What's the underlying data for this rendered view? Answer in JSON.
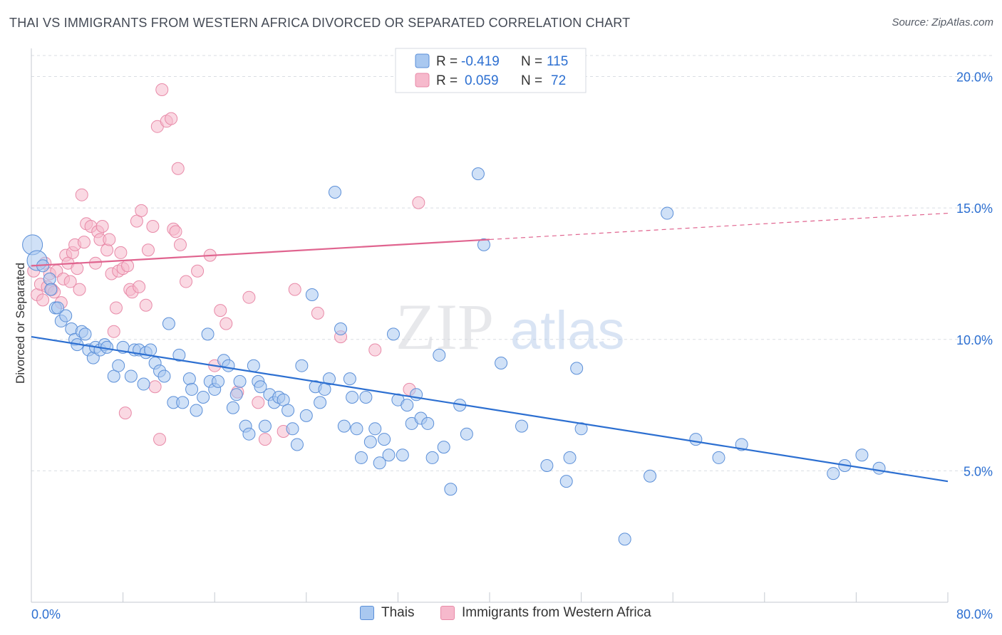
{
  "header": {
    "title": "THAI VS IMMIGRANTS FROM WESTERN AFRICA DIVORCED OR SEPARATED CORRELATION CHART",
    "source": "Source: ZipAtlas.com"
  },
  "watermark": {
    "zip": "ZIP",
    "atlas": "atlas"
  },
  "colors": {
    "thai_fill": "#a9c8f0",
    "thai_stroke": "#5b8fd8",
    "thai_line": "#2c6fd1",
    "waf_fill": "#f6b9cc",
    "waf_stroke": "#e88aa8",
    "waf_line": "#e0648f",
    "value_text": "#2c6fd1",
    "grid": "#d9dde3"
  },
  "legend_top": [
    {
      "r_label": "R =",
      "r_value": "-0.419",
      "n_label": "N =",
      "n_value": "115"
    },
    {
      "r_label": "R =",
      "r_value": "0.059",
      "n_label": "N =",
      "n_value": "72"
    }
  ],
  "chart_data": {
    "type": "scatter",
    "title": "THAI VS IMMIGRANTS FROM WESTERN AFRICA DIVORCED OR SEPARATED CORRELATION CHART",
    "xlabel": "",
    "ylabel": "Divorced or Separated",
    "xlim": [
      0,
      80
    ],
    "ylim": [
      0,
      20.8
    ],
    "x_tick_labels": [
      "0.0%",
      "80.0%"
    ],
    "y_ticks": [
      5,
      10,
      15,
      20
    ],
    "y_tick_labels": [
      "5.0%",
      "10.0%",
      "15.0%",
      "20.0%"
    ],
    "grid": "horizontal dashed",
    "legend": "bottom-center",
    "series": [
      {
        "name": "Thais",
        "r": -0.419,
        "n": 115,
        "trend": {
          "x": [
            0,
            80
          ],
          "y": [
            10.1,
            4.6
          ]
        },
        "points": [
          [
            0.1,
            13.6
          ],
          [
            0.5,
            13.0
          ],
          [
            1.0,
            12.8
          ],
          [
            1.6,
            12.3
          ],
          [
            1.7,
            11.9
          ],
          [
            2.1,
            11.2
          ],
          [
            2.3,
            11.2
          ],
          [
            2.6,
            10.7
          ],
          [
            3.0,
            10.9
          ],
          [
            3.5,
            10.4
          ],
          [
            3.8,
            10.0
          ],
          [
            4.0,
            9.8
          ],
          [
            4.4,
            10.3
          ],
          [
            4.7,
            10.2
          ],
          [
            5.0,
            9.6
          ],
          [
            5.4,
            9.3
          ],
          [
            5.6,
            9.7
          ],
          [
            6.0,
            9.6
          ],
          [
            6.4,
            9.8
          ],
          [
            6.6,
            9.7
          ],
          [
            7.2,
            8.6
          ],
          [
            7.6,
            9.0
          ],
          [
            8.0,
            9.7
          ],
          [
            8.7,
            8.6
          ],
          [
            9.0,
            9.6
          ],
          [
            9.4,
            9.6
          ],
          [
            9.8,
            8.3
          ],
          [
            10.0,
            9.5
          ],
          [
            10.4,
            9.6
          ],
          [
            10.8,
            9.1
          ],
          [
            11.2,
            8.8
          ],
          [
            11.6,
            8.6
          ],
          [
            12.0,
            10.6
          ],
          [
            12.4,
            7.6
          ],
          [
            12.9,
            9.4
          ],
          [
            13.2,
            7.6
          ],
          [
            13.8,
            8.5
          ],
          [
            14.0,
            8.1
          ],
          [
            14.4,
            7.3
          ],
          [
            15.0,
            7.8
          ],
          [
            15.4,
            10.2
          ],
          [
            15.6,
            8.4
          ],
          [
            16.0,
            8.1
          ],
          [
            16.3,
            8.4
          ],
          [
            16.8,
            9.2
          ],
          [
            17.2,
            9.0
          ],
          [
            17.6,
            7.4
          ],
          [
            17.9,
            7.9
          ],
          [
            18.2,
            8.4
          ],
          [
            18.7,
            6.7
          ],
          [
            19.0,
            6.4
          ],
          [
            19.4,
            9.0
          ],
          [
            19.8,
            8.4
          ],
          [
            20.0,
            8.2
          ],
          [
            20.4,
            6.7
          ],
          [
            20.8,
            7.9
          ],
          [
            21.2,
            7.6
          ],
          [
            21.6,
            7.8
          ],
          [
            22.0,
            7.7
          ],
          [
            22.4,
            7.3
          ],
          [
            22.8,
            6.6
          ],
          [
            23.2,
            6.0
          ],
          [
            23.6,
            9.0
          ],
          [
            24.0,
            7.1
          ],
          [
            24.5,
            11.7
          ],
          [
            24.8,
            8.2
          ],
          [
            25.2,
            7.6
          ],
          [
            25.6,
            8.1
          ],
          [
            26.0,
            8.5
          ],
          [
            26.5,
            15.6
          ],
          [
            27.0,
            10.4
          ],
          [
            27.3,
            6.7
          ],
          [
            27.8,
            8.5
          ],
          [
            28.0,
            7.8
          ],
          [
            28.4,
            6.6
          ],
          [
            28.8,
            5.5
          ],
          [
            29.2,
            7.8
          ],
          [
            29.6,
            6.1
          ],
          [
            30.0,
            6.6
          ],
          [
            30.4,
            5.3
          ],
          [
            30.8,
            6.2
          ],
          [
            31.2,
            5.6
          ],
          [
            31.6,
            10.2
          ],
          [
            32.0,
            7.7
          ],
          [
            32.4,
            5.6
          ],
          [
            32.8,
            7.5
          ],
          [
            33.2,
            6.8
          ],
          [
            33.6,
            7.9
          ],
          [
            34.0,
            7.0
          ],
          [
            34.6,
            6.8
          ],
          [
            35.0,
            5.5
          ],
          [
            35.6,
            9.4
          ],
          [
            36.0,
            5.9
          ],
          [
            36.6,
            4.3
          ],
          [
            37.4,
            7.5
          ],
          [
            38.0,
            6.4
          ],
          [
            39.0,
            16.3
          ],
          [
            39.5,
            13.6
          ],
          [
            41.0,
            9.1
          ],
          [
            42.8,
            6.7
          ],
          [
            45.0,
            5.2
          ],
          [
            46.7,
            4.6
          ],
          [
            47.0,
            5.5
          ],
          [
            47.6,
            8.9
          ],
          [
            48.0,
            6.6
          ],
          [
            51.8,
            2.4
          ],
          [
            54.0,
            4.8
          ],
          [
            55.5,
            14.8
          ],
          [
            58.0,
            6.2
          ],
          [
            60.0,
            5.5
          ],
          [
            62.0,
            6.0
          ],
          [
            70.0,
            4.9
          ],
          [
            71.0,
            5.2
          ],
          [
            72.5,
            5.6
          ],
          [
            74.0,
            5.1
          ]
        ]
      },
      {
        "name": "Immigrants from Western Africa",
        "r": 0.059,
        "n": 72,
        "trend": {
          "x": [
            0,
            80
          ],
          "y": [
            12.8,
            14.8
          ],
          "solid_until_x": 40
        },
        "points": [
          [
            0.2,
            12.6
          ],
          [
            0.5,
            11.7
          ],
          [
            0.8,
            12.1
          ],
          [
            1.0,
            11.5
          ],
          [
            1.2,
            12.9
          ],
          [
            1.4,
            12.0
          ],
          [
            1.6,
            12.5
          ],
          [
            1.8,
            11.9
          ],
          [
            2.0,
            11.8
          ],
          [
            2.2,
            12.6
          ],
          [
            2.6,
            11.4
          ],
          [
            2.8,
            12.3
          ],
          [
            3.0,
            13.2
          ],
          [
            3.2,
            12.9
          ],
          [
            3.4,
            12.2
          ],
          [
            3.6,
            13.3
          ],
          [
            3.8,
            13.6
          ],
          [
            4.0,
            12.7
          ],
          [
            4.2,
            11.9
          ],
          [
            4.4,
            15.5
          ],
          [
            4.6,
            13.7
          ],
          [
            4.8,
            14.4
          ],
          [
            5.2,
            14.3
          ],
          [
            5.6,
            12.9
          ],
          [
            5.8,
            14.1
          ],
          [
            6.0,
            13.8
          ],
          [
            6.2,
            14.3
          ],
          [
            6.6,
            13.4
          ],
          [
            6.8,
            13.8
          ],
          [
            7.0,
            12.5
          ],
          [
            7.2,
            10.3
          ],
          [
            7.4,
            11.2
          ],
          [
            7.6,
            12.6
          ],
          [
            7.8,
            13.3
          ],
          [
            8.0,
            12.7
          ],
          [
            8.2,
            7.2
          ],
          [
            8.4,
            12.8
          ],
          [
            8.6,
            11.9
          ],
          [
            8.8,
            11.8
          ],
          [
            9.2,
            14.5
          ],
          [
            9.4,
            12.0
          ],
          [
            9.6,
            14.9
          ],
          [
            10.0,
            11.3
          ],
          [
            10.2,
            13.4
          ],
          [
            10.6,
            14.3
          ],
          [
            10.8,
            8.2
          ],
          [
            11.0,
            18.1
          ],
          [
            11.2,
            6.2
          ],
          [
            11.4,
            19.5
          ],
          [
            11.8,
            18.3
          ],
          [
            12.2,
            18.4
          ],
          [
            12.4,
            14.2
          ],
          [
            12.6,
            14.1
          ],
          [
            12.8,
            16.5
          ],
          [
            13.0,
            13.6
          ],
          [
            13.5,
            12.2
          ],
          [
            14.5,
            12.6
          ],
          [
            15.6,
            13.2
          ],
          [
            16.0,
            9.0
          ],
          [
            16.5,
            11.1
          ],
          [
            17.0,
            10.6
          ],
          [
            18.0,
            8.0
          ],
          [
            19.0,
            11.6
          ],
          [
            19.8,
            7.6
          ],
          [
            20.4,
            6.2
          ],
          [
            22.0,
            6.5
          ],
          [
            23.0,
            11.9
          ],
          [
            25.0,
            11.0
          ],
          [
            27.0,
            10.1
          ],
          [
            30.0,
            9.6
          ],
          [
            33.0,
            8.1
          ],
          [
            33.8,
            15.2
          ]
        ]
      }
    ]
  },
  "legend_bottom": [
    "Thais",
    "Immigrants from Western Africa"
  ]
}
